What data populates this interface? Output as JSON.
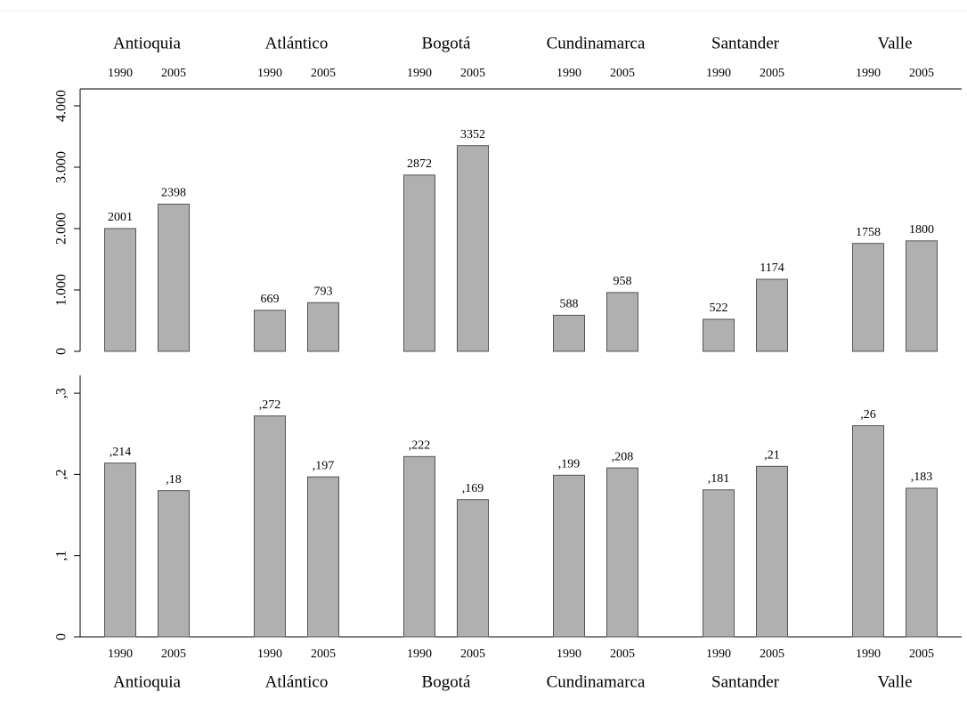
{
  "chart_data": [
    {
      "type": "bar",
      "categories": [
        "Antioquia",
        "Atlántico",
        "Bogotá",
        "Cundinamarca",
        "Santander",
        "Valle"
      ],
      "series": [
        {
          "name": "1990",
          "color": "#b0b0b0",
          "values": [
            2001,
            669,
            2872,
            588,
            522,
            1758
          ]
        },
        {
          "name": "2005",
          "color": "#b0b0b0",
          "values": [
            2398,
            793,
            3352,
            958,
            1174,
            1800
          ]
        }
      ],
      "ylim": [
        0,
        4275
      ],
      "yticks": [
        0,
        {
          "value": 1000,
          "label": "1.000"
        },
        {
          "value": 2000,
          "label": "2.000"
        },
        {
          "value": 3000,
          "label": "3.000"
        },
        {
          "value": 4000,
          "label": "4.000"
        }
      ]
    },
    {
      "type": "bar",
      "categories": [
        "Antioquia",
        "Atlántico",
        "Bogotá",
        "Cundinamarca",
        "Santander",
        "Valle"
      ],
      "series": [
        {
          "name": "1990",
          "color": "#b0b0b0",
          "values": [
            0.214,
            0.272,
            0.222,
            0.199,
            0.181,
            0.26
          ],
          "value_labels": [
            ",214",
            ",272",
            ",222",
            ",199",
            ",181",
            ",26"
          ]
        },
        {
          "name": "2005",
          "color": "#b0b0b0",
          "values": [
            0.18,
            0.197,
            0.169,
            0.208,
            0.21,
            0.183
          ],
          "value_labels": [
            ",18",
            ",197",
            ",169",
            ",208",
            ",21",
            ",183"
          ]
        }
      ],
      "ylim": [
        0,
        0.322
      ],
      "yticks": [
        0,
        {
          "value": 0.1,
          "label": ",1"
        },
        {
          "value": 0.2,
          "label": ",2"
        },
        {
          "value": 0.3,
          "label": ",3"
        }
      ]
    }
  ]
}
